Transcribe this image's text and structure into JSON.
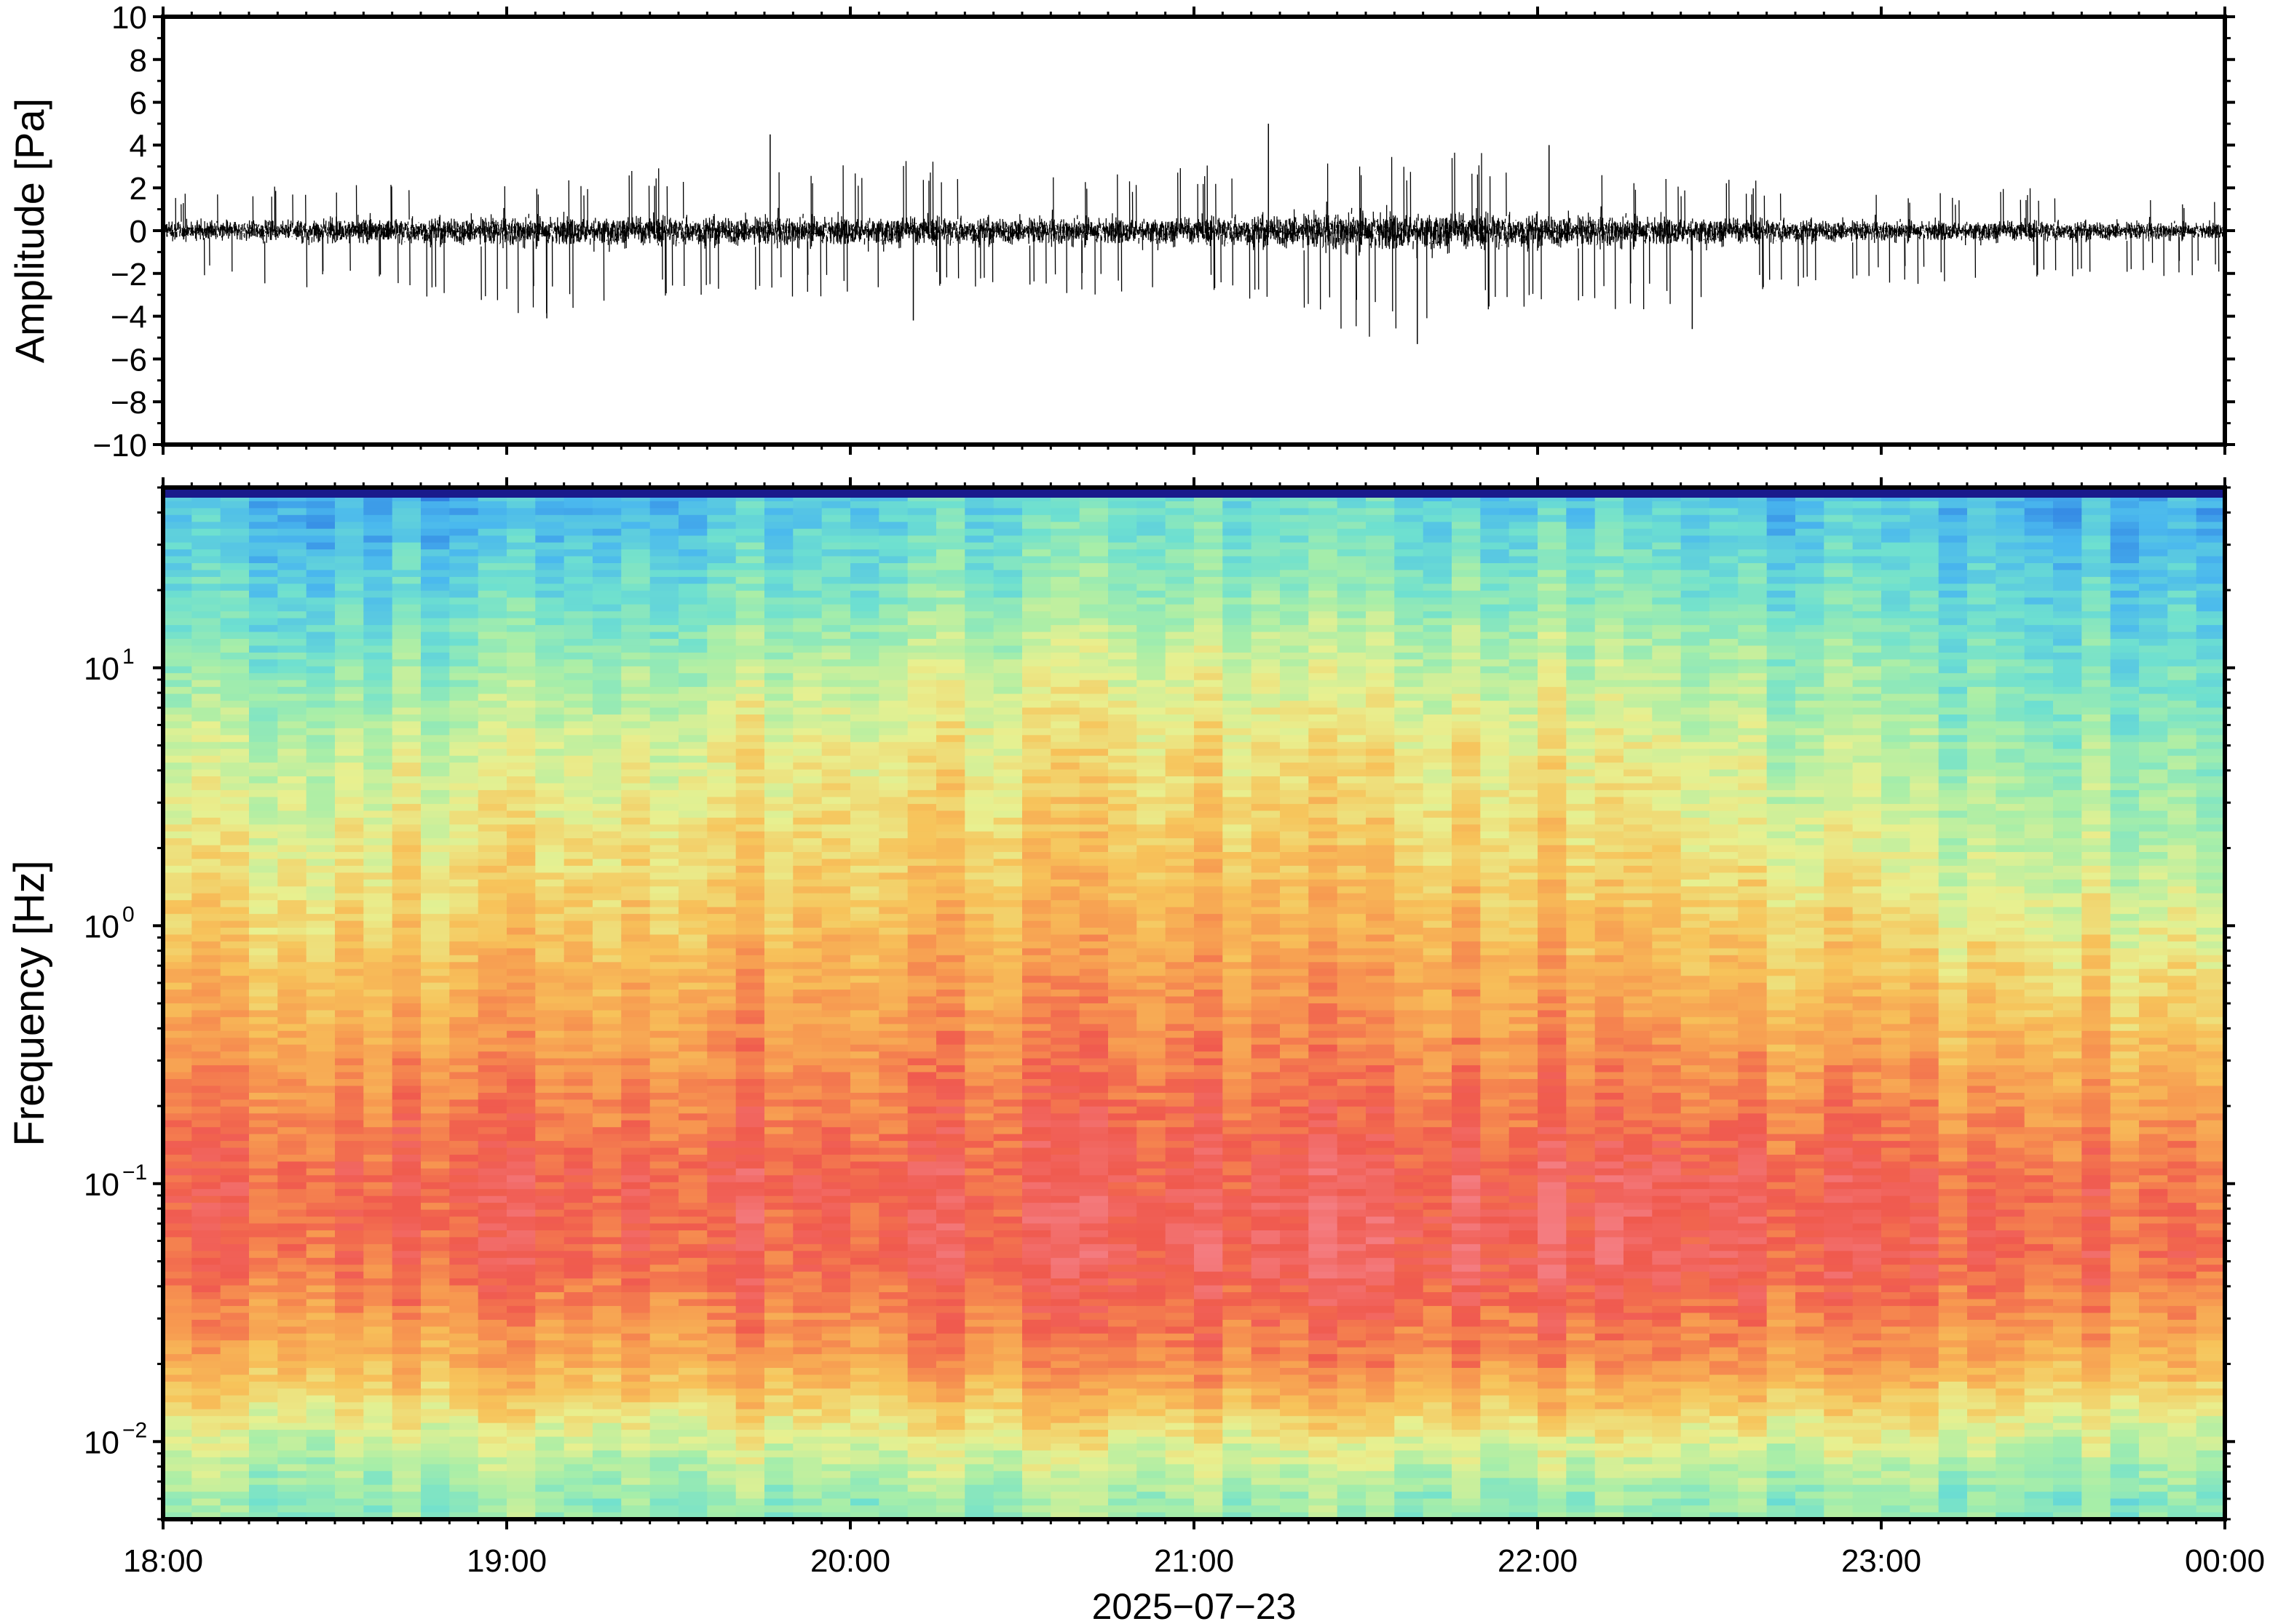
{
  "chart_data": [
    {
      "type": "line",
      "panel": "waveform",
      "ylabel": "Amplitude [Pa]",
      "ylim": [
        -10,
        10
      ],
      "yticks": [
        10,
        8,
        6,
        4,
        2,
        0,
        -2,
        -4,
        -6,
        -8,
        -10
      ],
      "ytick_labels": [
        "10",
        "8",
        "6",
        "4",
        "2",
        "0",
        "−2",
        "−4",
        "−6",
        "−8",
        "−10"
      ],
      "xlim": [
        "2025-07-23T18:00",
        "2025-07-24T00:00"
      ],
      "series": [
        {
          "color": "#000000",
          "x_unit": "time",
          "envelope_time": [
            "18:00",
            "18:30",
            "19:00",
            "19:30",
            "20:00",
            "20:30",
            "21:00",
            "21:30",
            "22:00",
            "22:30",
            "23:00",
            "23:30",
            "00:00"
          ],
          "envelope_max": [
            2.0,
            2.5,
            2.5,
            3.0,
            3.5,
            3.0,
            3.0,
            4.0,
            3.5,
            2.5,
            2.0,
            2.0,
            1.5
          ],
          "envelope_min": [
            -2.0,
            -3.0,
            -4.0,
            -3.5,
            -3.0,
            -3.0,
            -3.0,
            -5.0,
            -4.0,
            -3.5,
            -2.5,
            -2.5,
            -2.0
          ],
          "peaks": [
            {
              "time": "19:46",
              "value": 4.5
            },
            {
              "time": "21:13",
              "value": 5.0
            },
            {
              "time": "21:39",
              "value": -5.3
            },
            {
              "time": "22:02",
              "value": 4.0
            },
            {
              "time": "22:27",
              "value": -4.6
            },
            {
              "time": "20:11",
              "value": -4.2
            },
            {
              "time": "19:07",
              "value": -4.1
            }
          ]
        }
      ]
    },
    {
      "type": "heatmap",
      "panel": "spectrogram",
      "ylabel": "Frequency [Hz]",
      "yscale": "log",
      "ylim": [
        0.005,
        50
      ],
      "ytick_labels": [
        {
          "base": "10",
          "exp": "1",
          "value": 10
        },
        {
          "base": "10",
          "exp": "0",
          "value": 1
        },
        {
          "base": "10",
          "exp": "−1",
          "value": 0.1
        },
        {
          "base": "10",
          "exp": "−2",
          "value": 0.01
        }
      ],
      "xlabel": "2025−07−23",
      "xtick_labels": [
        "18:00",
        "19:00",
        "20:00",
        "21:00",
        "22:00",
        "23:00",
        "00:00"
      ],
      "xlim": [
        "2025-07-23T18:00",
        "2025-07-24T00:00"
      ],
      "colormap": [
        "#1a1a8c",
        "#2b74e0",
        "#4ab8ee",
        "#6ee0d0",
        "#a8eea8",
        "#e8f090",
        "#f7c35a",
        "#f79850",
        "#f05a4e",
        "#f47c80"
      ],
      "time_columns": [
        "18:00",
        "19:00",
        "20:00",
        "21:00",
        "22:00",
        "23:00",
        "00:00"
      ],
      "frequency_rows_hz": [
        40,
        20,
        10,
        5,
        2,
        1,
        0.5,
        0.2,
        0.1,
        0.05,
        0.02,
        0.01,
        0.006
      ],
      "relative_power": [
        [
          0.25,
          0.22,
          0.3,
          0.35,
          0.3,
          0.25,
          0.22
        ],
        [
          0.3,
          0.32,
          0.38,
          0.42,
          0.4,
          0.32,
          0.28
        ],
        [
          0.38,
          0.42,
          0.5,
          0.52,
          0.5,
          0.4,
          0.34
        ],
        [
          0.48,
          0.52,
          0.58,
          0.6,
          0.58,
          0.45,
          0.4
        ],
        [
          0.55,
          0.6,
          0.64,
          0.66,
          0.64,
          0.52,
          0.46
        ],
        [
          0.62,
          0.66,
          0.7,
          0.72,
          0.7,
          0.6,
          0.55
        ],
        [
          0.7,
          0.73,
          0.76,
          0.78,
          0.76,
          0.68,
          0.64
        ],
        [
          0.8,
          0.82,
          0.84,
          0.86,
          0.84,
          0.8,
          0.76
        ],
        [
          0.86,
          0.9,
          0.9,
          0.9,
          0.94,
          0.88,
          0.84
        ],
        [
          0.84,
          0.88,
          0.88,
          0.92,
          0.94,
          0.88,
          0.86
        ],
        [
          0.7,
          0.72,
          0.76,
          0.8,
          0.8,
          0.74,
          0.7
        ],
        [
          0.5,
          0.52,
          0.55,
          0.56,
          0.55,
          0.52,
          0.5
        ],
        [
          0.4,
          0.42,
          0.42,
          0.44,
          0.42,
          0.4,
          0.4
        ]
      ]
    }
  ]
}
